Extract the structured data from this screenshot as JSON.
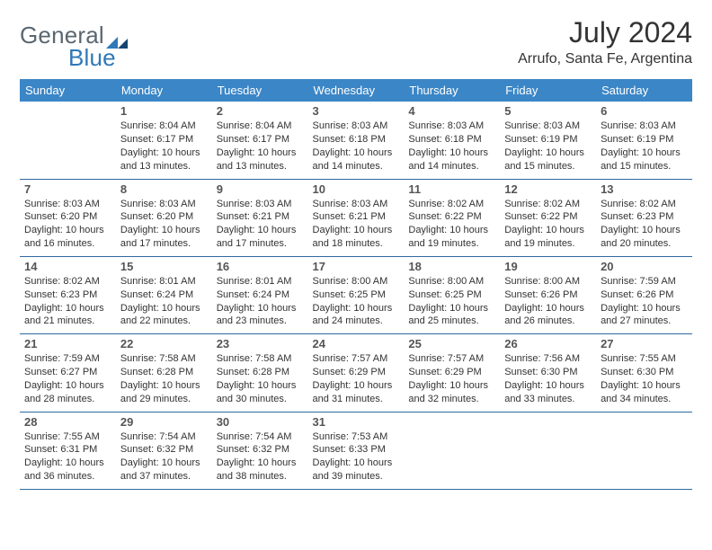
{
  "brand": {
    "general": "General",
    "blue": "Blue"
  },
  "title": {
    "month": "July 2024",
    "location": "Arrufo, Santa Fe, Argentina"
  },
  "colors": {
    "header_bg": "#3b86c6",
    "header_text": "#ffffff",
    "rule": "#2f6aa0",
    "brand_gray": "#5b6770",
    "brand_blue": "#2f78b7",
    "text": "#333333",
    "daynum": "#555555",
    "page_bg": "#ffffff"
  },
  "fonts": {
    "title_size": 32,
    "location_size": 16,
    "thead_size": 13,
    "daynum_size": 13,
    "body_size": 11
  },
  "weekdays": [
    "Sunday",
    "Monday",
    "Tuesday",
    "Wednesday",
    "Thursday",
    "Friday",
    "Saturday"
  ],
  "weeks": [
    [
      {
        "day": "",
        "sunrise": "",
        "sunset": "",
        "daylight1": "",
        "daylight2": ""
      },
      {
        "day": "1",
        "sunrise": "Sunrise: 8:04 AM",
        "sunset": "Sunset: 6:17 PM",
        "daylight1": "Daylight: 10 hours",
        "daylight2": "and 13 minutes."
      },
      {
        "day": "2",
        "sunrise": "Sunrise: 8:04 AM",
        "sunset": "Sunset: 6:17 PM",
        "daylight1": "Daylight: 10 hours",
        "daylight2": "and 13 minutes."
      },
      {
        "day": "3",
        "sunrise": "Sunrise: 8:03 AM",
        "sunset": "Sunset: 6:18 PM",
        "daylight1": "Daylight: 10 hours",
        "daylight2": "and 14 minutes."
      },
      {
        "day": "4",
        "sunrise": "Sunrise: 8:03 AM",
        "sunset": "Sunset: 6:18 PM",
        "daylight1": "Daylight: 10 hours",
        "daylight2": "and 14 minutes."
      },
      {
        "day": "5",
        "sunrise": "Sunrise: 8:03 AM",
        "sunset": "Sunset: 6:19 PM",
        "daylight1": "Daylight: 10 hours",
        "daylight2": "and 15 minutes."
      },
      {
        "day": "6",
        "sunrise": "Sunrise: 8:03 AM",
        "sunset": "Sunset: 6:19 PM",
        "daylight1": "Daylight: 10 hours",
        "daylight2": "and 15 minutes."
      }
    ],
    [
      {
        "day": "7",
        "sunrise": "Sunrise: 8:03 AM",
        "sunset": "Sunset: 6:20 PM",
        "daylight1": "Daylight: 10 hours",
        "daylight2": "and 16 minutes."
      },
      {
        "day": "8",
        "sunrise": "Sunrise: 8:03 AM",
        "sunset": "Sunset: 6:20 PM",
        "daylight1": "Daylight: 10 hours",
        "daylight2": "and 17 minutes."
      },
      {
        "day": "9",
        "sunrise": "Sunrise: 8:03 AM",
        "sunset": "Sunset: 6:21 PM",
        "daylight1": "Daylight: 10 hours",
        "daylight2": "and 17 minutes."
      },
      {
        "day": "10",
        "sunrise": "Sunrise: 8:03 AM",
        "sunset": "Sunset: 6:21 PM",
        "daylight1": "Daylight: 10 hours",
        "daylight2": "and 18 minutes."
      },
      {
        "day": "11",
        "sunrise": "Sunrise: 8:02 AM",
        "sunset": "Sunset: 6:22 PM",
        "daylight1": "Daylight: 10 hours",
        "daylight2": "and 19 minutes."
      },
      {
        "day": "12",
        "sunrise": "Sunrise: 8:02 AM",
        "sunset": "Sunset: 6:22 PM",
        "daylight1": "Daylight: 10 hours",
        "daylight2": "and 19 minutes."
      },
      {
        "day": "13",
        "sunrise": "Sunrise: 8:02 AM",
        "sunset": "Sunset: 6:23 PM",
        "daylight1": "Daylight: 10 hours",
        "daylight2": "and 20 minutes."
      }
    ],
    [
      {
        "day": "14",
        "sunrise": "Sunrise: 8:02 AM",
        "sunset": "Sunset: 6:23 PM",
        "daylight1": "Daylight: 10 hours",
        "daylight2": "and 21 minutes."
      },
      {
        "day": "15",
        "sunrise": "Sunrise: 8:01 AM",
        "sunset": "Sunset: 6:24 PM",
        "daylight1": "Daylight: 10 hours",
        "daylight2": "and 22 minutes."
      },
      {
        "day": "16",
        "sunrise": "Sunrise: 8:01 AM",
        "sunset": "Sunset: 6:24 PM",
        "daylight1": "Daylight: 10 hours",
        "daylight2": "and 23 minutes."
      },
      {
        "day": "17",
        "sunrise": "Sunrise: 8:00 AM",
        "sunset": "Sunset: 6:25 PM",
        "daylight1": "Daylight: 10 hours",
        "daylight2": "and 24 minutes."
      },
      {
        "day": "18",
        "sunrise": "Sunrise: 8:00 AM",
        "sunset": "Sunset: 6:25 PM",
        "daylight1": "Daylight: 10 hours",
        "daylight2": "and 25 minutes."
      },
      {
        "day": "19",
        "sunrise": "Sunrise: 8:00 AM",
        "sunset": "Sunset: 6:26 PM",
        "daylight1": "Daylight: 10 hours",
        "daylight2": "and 26 minutes."
      },
      {
        "day": "20",
        "sunrise": "Sunrise: 7:59 AM",
        "sunset": "Sunset: 6:26 PM",
        "daylight1": "Daylight: 10 hours",
        "daylight2": "and 27 minutes."
      }
    ],
    [
      {
        "day": "21",
        "sunrise": "Sunrise: 7:59 AM",
        "sunset": "Sunset: 6:27 PM",
        "daylight1": "Daylight: 10 hours",
        "daylight2": "and 28 minutes."
      },
      {
        "day": "22",
        "sunrise": "Sunrise: 7:58 AM",
        "sunset": "Sunset: 6:28 PM",
        "daylight1": "Daylight: 10 hours",
        "daylight2": "and 29 minutes."
      },
      {
        "day": "23",
        "sunrise": "Sunrise: 7:58 AM",
        "sunset": "Sunset: 6:28 PM",
        "daylight1": "Daylight: 10 hours",
        "daylight2": "and 30 minutes."
      },
      {
        "day": "24",
        "sunrise": "Sunrise: 7:57 AM",
        "sunset": "Sunset: 6:29 PM",
        "daylight1": "Daylight: 10 hours",
        "daylight2": "and 31 minutes."
      },
      {
        "day": "25",
        "sunrise": "Sunrise: 7:57 AM",
        "sunset": "Sunset: 6:29 PM",
        "daylight1": "Daylight: 10 hours",
        "daylight2": "and 32 minutes."
      },
      {
        "day": "26",
        "sunrise": "Sunrise: 7:56 AM",
        "sunset": "Sunset: 6:30 PM",
        "daylight1": "Daylight: 10 hours",
        "daylight2": "and 33 minutes."
      },
      {
        "day": "27",
        "sunrise": "Sunrise: 7:55 AM",
        "sunset": "Sunset: 6:30 PM",
        "daylight1": "Daylight: 10 hours",
        "daylight2": "and 34 minutes."
      }
    ],
    [
      {
        "day": "28",
        "sunrise": "Sunrise: 7:55 AM",
        "sunset": "Sunset: 6:31 PM",
        "daylight1": "Daylight: 10 hours",
        "daylight2": "and 36 minutes."
      },
      {
        "day": "29",
        "sunrise": "Sunrise: 7:54 AM",
        "sunset": "Sunset: 6:32 PM",
        "daylight1": "Daylight: 10 hours",
        "daylight2": "and 37 minutes."
      },
      {
        "day": "30",
        "sunrise": "Sunrise: 7:54 AM",
        "sunset": "Sunset: 6:32 PM",
        "daylight1": "Daylight: 10 hours",
        "daylight2": "and 38 minutes."
      },
      {
        "day": "31",
        "sunrise": "Sunrise: 7:53 AM",
        "sunset": "Sunset: 6:33 PM",
        "daylight1": "Daylight: 10 hours",
        "daylight2": "and 39 minutes."
      },
      {
        "day": "",
        "sunrise": "",
        "sunset": "",
        "daylight1": "",
        "daylight2": ""
      },
      {
        "day": "",
        "sunrise": "",
        "sunset": "",
        "daylight1": "",
        "daylight2": ""
      },
      {
        "day": "",
        "sunrise": "",
        "sunset": "",
        "daylight1": "",
        "daylight2": ""
      }
    ]
  ]
}
